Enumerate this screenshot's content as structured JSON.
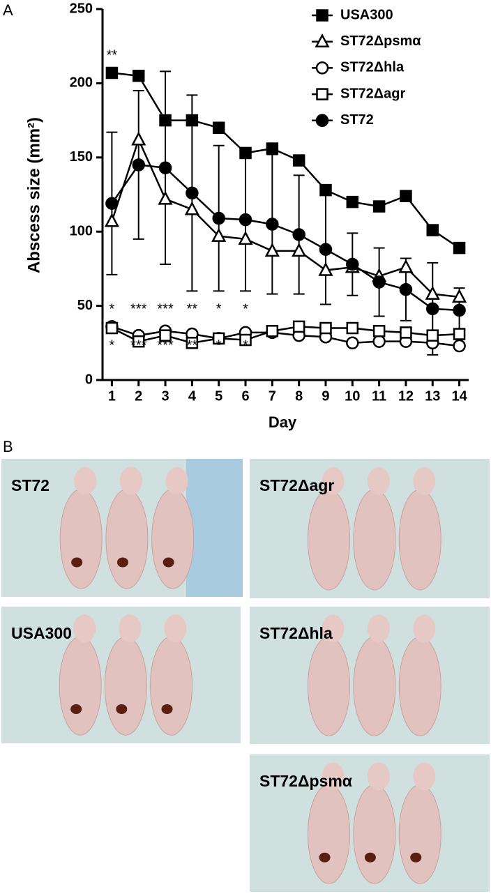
{
  "panel_a": {
    "label": "A",
    "chart_data": {
      "type": "line",
      "y_label": "Abscess size (mm²)",
      "x_label": "Day",
      "x": [
        1,
        2,
        3,
        4,
        5,
        6,
        7,
        8,
        9,
        10,
        11,
        12,
        13,
        14
      ],
      "xlim": [
        0.65,
        14.35
      ],
      "xticks": [
        1,
        2,
        3,
        4,
        5,
        6,
        7,
        8,
        9,
        10,
        11,
        12,
        13,
        14
      ],
      "ylim": [
        0,
        250
      ],
      "yticks": [
        0,
        50,
        100,
        150,
        200,
        250
      ],
      "legend": "upper right",
      "series": [
        {
          "name": "USA300",
          "color": "#000000",
          "marker": "square",
          "filled": true,
          "values": [
            207,
            205,
            175,
            175,
            170,
            153,
            156,
            148,
            128,
            120,
            117,
            124,
            101,
            89
          ]
        },
        {
          "name": "ST72Δpsmα",
          "color": "#000000",
          "marker": "triangle",
          "filled": false,
          "values": [
            107,
            162,
            122,
            115,
            97,
            95,
            87,
            87,
            74,
            76,
            70,
            76,
            58,
            56
          ]
        },
        {
          "name": "ST72Δhla",
          "color": "#000000",
          "marker": "circle",
          "filled": false,
          "values": [
            36,
            30,
            33,
            31,
            28,
            32,
            32,
            30,
            29,
            25,
            26,
            26,
            25,
            23
          ]
        },
        {
          "name": "ST72Δagr",
          "color": "#000000",
          "marker": "square",
          "filled": false,
          "values": [
            35,
            26,
            30,
            25,
            28,
            27,
            33,
            36,
            35,
            35,
            33,
            32,
            30,
            31
          ]
        },
        {
          "name": "ST72",
          "color": "#000000",
          "marker": "circle",
          "filled": true,
          "values": [
            119,
            145,
            143,
            126,
            109,
            108,
            105,
            98,
            88,
            78,
            66,
            61,
            48,
            47
          ],
          "errors": [
            48,
            50,
            65,
            66,
            49,
            48,
            47,
            40,
            37,
            21,
            23,
            21,
            31,
            15
          ]
        }
      ],
      "significance_top": [
        {
          "x": 1,
          "text": "**"
        }
      ],
      "significance_upper": [
        {
          "x": 1,
          "text": "*"
        },
        {
          "x": 2,
          "text": "***"
        },
        {
          "x": 3,
          "text": "***"
        },
        {
          "x": 4,
          "text": "**"
        },
        {
          "x": 5,
          "text": "*"
        },
        {
          "x": 6,
          "text": "*"
        }
      ],
      "significance_lower": [
        {
          "x": 1,
          "text": "*"
        },
        {
          "x": 2,
          "text": "***"
        },
        {
          "x": 3,
          "text": "***"
        },
        {
          "x": 4,
          "text": "**"
        },
        {
          "x": 5,
          "text": "*"
        },
        {
          "x": 6,
          "text": "*"
        }
      ]
    }
  },
  "panel_b": {
    "label": "B",
    "photos": [
      {
        "label": "ST72"
      },
      {
        "label": "ST72Δagr"
      },
      {
        "label": "USA300"
      },
      {
        "label": "ST72Δhla"
      },
      {
        "label": "ST72Δpsmα"
      }
    ]
  }
}
